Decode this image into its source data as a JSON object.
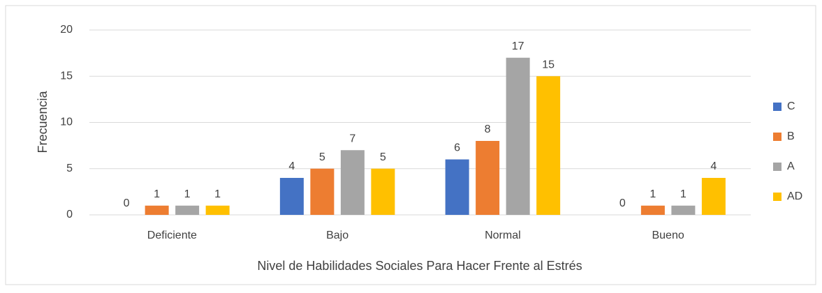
{
  "chart_data": {
    "type": "bar",
    "x_label": "Nivel de Habilidades Sociales Para Hacer Frente al Estrés",
    "y_label": "Frecuencia",
    "categories": [
      "Deficiente",
      "Bajo",
      "Normal",
      "Bueno"
    ],
    "series": [
      {
        "name": "C",
        "color": "#4472c4",
        "values": [
          0,
          4,
          6,
          0
        ]
      },
      {
        "name": "B",
        "color": "#ed7d31",
        "values": [
          1,
          5,
          8,
          1
        ]
      },
      {
        "name": "A",
        "color": "#a5a5a5",
        "values": [
          1,
          7,
          17,
          1
        ]
      },
      {
        "name": "AD",
        "color": "#ffc000",
        "values": [
          1,
          5,
          15,
          4
        ]
      }
    ],
    "ylim": [
      0,
      20
    ],
    "yticks": [
      0,
      5,
      10,
      15,
      20
    ],
    "grid": true,
    "legend": "right"
  }
}
